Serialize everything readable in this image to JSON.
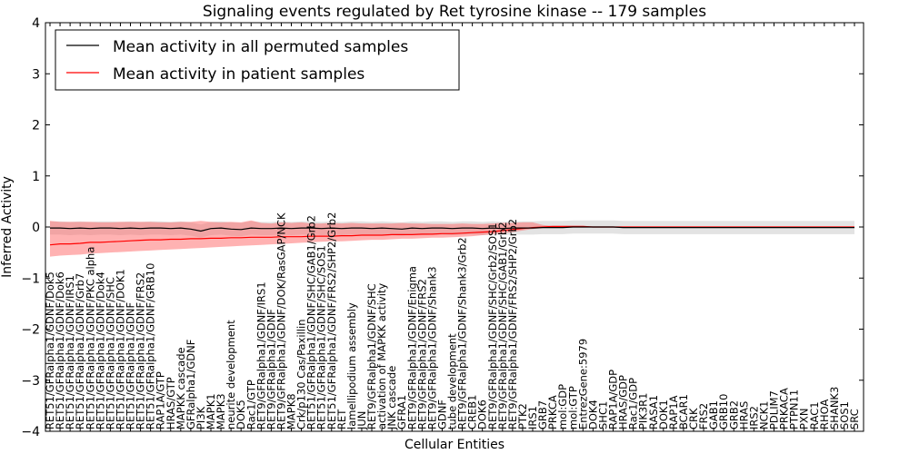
{
  "chart_data": {
    "type": "line",
    "title": "Signaling events regulated by Ret tyrosine kinase -- 179 samples",
    "xlabel": "Cellular Entities",
    "ylabel": "Inferred Activity",
    "ylim": [
      -4,
      4
    ],
    "yticks": [
      -4,
      -3,
      -2,
      -1,
      0,
      1,
      2,
      3,
      4
    ],
    "ytick_labels": [
      "−4",
      "−3",
      "−2",
      "−1",
      "0",
      "1",
      "2",
      "3",
      "4"
    ],
    "legend_position": "top-left",
    "grid": false,
    "categories": [
      "RET51/GFRalpha1/GDNF/Dok5",
      "RET51/GFRalpha1/GDNF/Dok6",
      "RET51/GFRalpha1/GDNF/IRS1",
      "RET51/GFRalpha1/GDNF/Grb7",
      "RET51/GFRalpha1/GDNF/PKC alpha",
      "RET51/GFRalpha1/GDNF/Dok4",
      "RET51/GFRalpha1/GDNF/SHC",
      "RET51/GFRalpha1/GDNF/DOK1",
      "RET51/GFRalpha1/GDNF",
      "RET51/GFRalpha1/GDNF/FRS2",
      "RET51/GFRalpha1/GDNF/GRB10",
      "RAP1A/GTP",
      "HRAS/GTP",
      "MAPKK cascade",
      "GFRalpha1/GDNF",
      "PI3K",
      "MAPK1",
      "MAPK3",
      "neurite development",
      "DOK5",
      "Rac1/GTP",
      "RET9/GFRalpha1/GDNF/IRS1",
      "RET9/GFRalpha1/GDNF",
      "RET9/GFRalpha1/GDNF/DOK/RasGAP/NCK",
      "MAPK8",
      "Crk/p130 Cas/Paxillin",
      "RET51/GFRalpha1/GDNF/SHC/GAB1/Grb2",
      "RET51/GFRalpha1/GDNF/SHC/SOS1",
      "RET51/GFRalpha1/GDNF/FRS2/SHP2/Grb2",
      "RET",
      "lamellipodium assembly",
      "JUN",
      "RET9/GFRalpha1/GDNF/SHC",
      "activation of MAPKK activity",
      "JNK cascade",
      "GFRA1",
      "RET9/GFRalpha1/GDNF/Enigma",
      "RET9/GFRalpha1/GDNF/FRS2",
      "RET9/GFRalpha1/GDNF/Shank3",
      "GDNF",
      "tube development",
      "RET9/GFRalpha1/GDNF/Shank3/Grb2",
      "CREB1",
      "DOK6",
      "RET9/GFRalpha1/GDNF/SHC/Grb2/SOS1",
      "RET9/GFRalpha1/GDNF/SHC/GAB1/Grb2",
      "RET9/GFRalpha1/GDNF/FRS2/SHP2/Grb2",
      "PTK2",
      "IRS1",
      "GRB7",
      "PRKCA",
      "mol:GDP",
      "mol:GTP",
      "EntrezGene:5979",
      "DOK4",
      "SHC1",
      "RAP1A/GDP",
      "HRAS/GDP",
      "Rac1/GDP",
      "PIK3R1",
      "RASA1",
      "DOK1",
      "RAP1A",
      "BCAR1",
      "CRK",
      "FRS2",
      "GAB1",
      "GRB10",
      "GRB2",
      "HRAS",
      "IRS2",
      "NCK1",
      "PDLIM7",
      "PRKACA",
      "PTPN11",
      "PXN",
      "RAC1",
      "RHOA",
      "SHANK3",
      "SOS1",
      "SRC"
    ],
    "series": [
      {
        "name": "Mean activity in all permuted samples",
        "color": "#000000",
        "values": [
          -0.02,
          -0.02,
          -0.03,
          -0.02,
          -0.03,
          -0.02,
          -0.02,
          -0.03,
          -0.02,
          -0.03,
          -0.02,
          -0.02,
          -0.03,
          -0.02,
          -0.04,
          -0.08,
          -0.03,
          -0.02,
          -0.04,
          -0.05,
          -0.02,
          -0.03,
          -0.03,
          -0.02,
          -0.03,
          -0.02,
          -0.02,
          -0.03,
          -0.02,
          -0.03,
          -0.02,
          -0.02,
          -0.03,
          -0.02,
          -0.03,
          -0.04,
          -0.02,
          -0.03,
          -0.02,
          -0.02,
          -0.03,
          -0.02,
          -0.02,
          -0.03,
          -0.02,
          -0.03,
          -0.02,
          -0.02,
          -0.02,
          -0.01,
          -0.01,
          -0.01,
          0.0,
          0.0,
          0.0,
          0.0,
          0.0,
          -0.01,
          -0.01,
          -0.01,
          -0.01,
          -0.01,
          -0.01,
          -0.01,
          -0.01,
          -0.01,
          -0.01,
          -0.01,
          -0.01,
          -0.01,
          -0.01,
          -0.01,
          -0.01,
          -0.01,
          -0.01,
          -0.01,
          -0.01,
          -0.01,
          -0.01,
          -0.01,
          -0.01
        ],
        "band": 0.13
      },
      {
        "name": "Mean activity in patient samples",
        "color": "#ff0000",
        "values": [
          -0.35,
          -0.33,
          -0.33,
          -0.32,
          -0.3,
          -0.3,
          -0.29,
          -0.28,
          -0.27,
          -0.26,
          -0.25,
          -0.25,
          -0.24,
          -0.24,
          -0.23,
          -0.23,
          -0.22,
          -0.22,
          -0.21,
          -0.21,
          -0.2,
          -0.2,
          -0.2,
          -0.19,
          -0.19,
          -0.19,
          -0.18,
          -0.18,
          -0.18,
          -0.17,
          -0.17,
          -0.16,
          -0.16,
          -0.16,
          -0.15,
          -0.15,
          -0.15,
          -0.14,
          -0.14,
          -0.13,
          -0.13,
          -0.12,
          -0.11,
          -0.1,
          -0.09,
          -0.07,
          -0.05,
          -0.03,
          -0.01,
          0.0,
          0.01,
          0.01,
          0.01,
          0.01,
          0.0,
          0.0,
          0.0,
          0.0,
          0.0,
          0.0,
          0.0,
          0.0,
          0.0,
          0.0,
          0.0,
          0.0,
          0.0,
          0.0,
          0.0,
          0.0,
          0.0,
          0.0,
          0.0,
          0.0,
          0.0,
          0.0,
          0.0,
          0.0,
          0.0,
          0.0,
          0.0
        ],
        "band_upper": [
          0.12,
          0.1,
          0.1,
          0.1,
          0.1,
          0.09,
          0.09,
          0.1,
          0.1,
          0.1,
          0.1,
          0.09,
          0.09,
          0.1,
          0.1,
          0.12,
          0.1,
          0.09,
          0.1,
          0.09,
          0.13,
          0.08,
          0.07,
          0.09,
          0.08,
          0.09,
          0.07,
          0.07,
          0.08,
          0.07,
          0.08,
          0.07,
          0.07,
          0.07,
          0.07,
          0.08,
          0.07,
          0.07,
          0.06,
          0.06,
          0.06,
          0.07,
          0.06,
          0.06,
          0.07,
          0.08,
          0.08,
          0.09,
          0.09,
          0.04,
          0.02,
          0.02,
          0.02,
          0.02,
          0.01,
          0.01,
          0.01,
          0.01,
          0.01,
          0.01,
          0.01,
          0.01,
          0.01,
          0.01,
          0.01,
          0.01,
          0.01,
          0.01,
          0.01,
          0.01,
          0.01,
          0.01,
          0.01,
          0.01,
          0.01,
          0.01,
          0.01,
          0.01,
          0.01,
          0.01,
          0.01
        ],
        "band_lower": [
          -0.58,
          -0.56,
          -0.55,
          -0.54,
          -0.52,
          -0.51,
          -0.5,
          -0.49,
          -0.48,
          -0.47,
          -0.46,
          -0.45,
          -0.44,
          -0.43,
          -0.42,
          -0.41,
          -0.4,
          -0.39,
          -0.38,
          -0.37,
          -0.36,
          -0.35,
          -0.34,
          -0.33,
          -0.32,
          -0.31,
          -0.3,
          -0.29,
          -0.28,
          -0.28,
          -0.27,
          -0.26,
          -0.25,
          -0.25,
          -0.24,
          -0.23,
          -0.23,
          -0.22,
          -0.21,
          -0.21,
          -0.2,
          -0.19,
          -0.18,
          -0.16,
          -0.14,
          -0.12,
          -0.1,
          -0.07,
          -0.04,
          -0.02,
          -0.01,
          -0.01,
          -0.01,
          -0.01,
          -0.01,
          -0.01,
          -0.01,
          -0.01,
          -0.01,
          -0.01,
          -0.01,
          -0.01,
          -0.01,
          -0.01,
          -0.01,
          -0.01,
          -0.01,
          -0.01,
          -0.01,
          -0.01,
          -0.01,
          -0.01,
          -0.01,
          -0.01,
          -0.01,
          -0.01,
          -0.01,
          -0.01,
          -0.01,
          -0.01,
          -0.01
        ]
      }
    ]
  }
}
